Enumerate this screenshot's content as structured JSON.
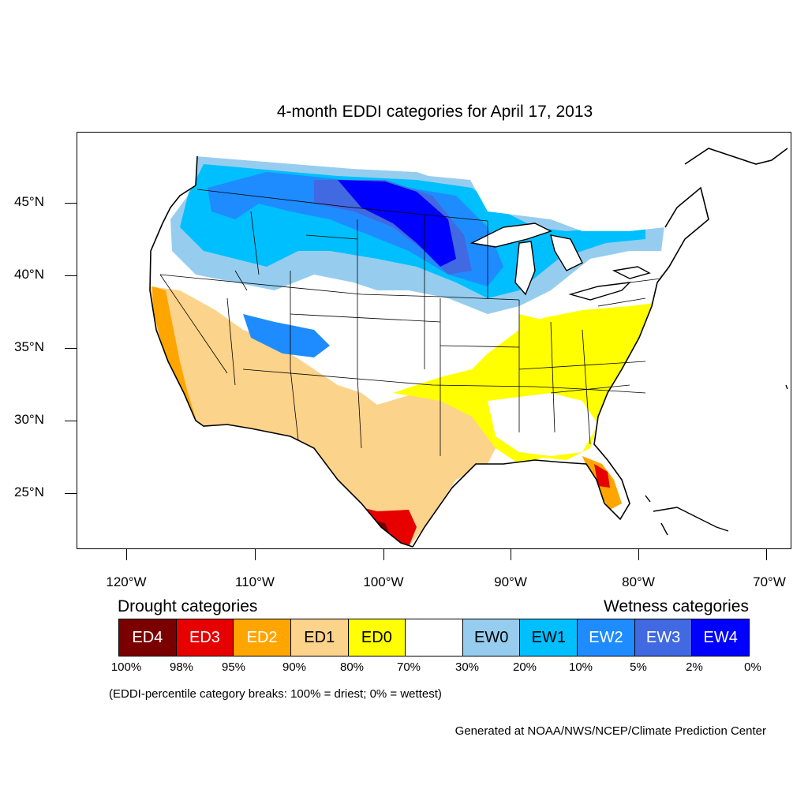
{
  "title": "4-month EDDI categories for April 17, 2013",
  "lat_labels": [
    "45°N",
    "40°N",
    "35°N",
    "30°N",
    "25°N"
  ],
  "lon_labels": [
    "120°W",
    "110°W",
    "100°W",
    "90°W",
    "80°W",
    "70°W"
  ],
  "legend": {
    "drought_title": "Drought categories",
    "wetness_title": "Wetness categories",
    "categories": [
      {
        "label": "ED4",
        "color": "#7a0000",
        "text_color": "#ffffff"
      },
      {
        "label": "ED3",
        "color": "#e60000",
        "text_color": "#ffffff"
      },
      {
        "label": "ED2",
        "color": "#ffa500",
        "text_color": "#ffffff"
      },
      {
        "label": "ED1",
        "color": "#fcd38a",
        "text_color": "#000000"
      },
      {
        "label": "ED0",
        "color": "#ffff00",
        "text_color": "#000000"
      },
      {
        "label": "",
        "color": "#ffffff",
        "text_color": "#000000"
      },
      {
        "label": "EW0",
        "color": "#96cdef",
        "text_color": "#000000"
      },
      {
        "label": "EW1",
        "color": "#00bfff",
        "text_color": "#000000"
      },
      {
        "label": "EW2",
        "color": "#1e8cff",
        "text_color": "#ffffff"
      },
      {
        "label": "EW3",
        "color": "#4169e1",
        "text_color": "#ffffff"
      },
      {
        "label": "EW4",
        "color": "#0000ff",
        "text_color": "#ffffff"
      }
    ],
    "breaks": [
      "100%",
      "98%",
      "95%",
      "90%",
      "80%",
      "70%",
      "30%",
      "20%",
      "10%",
      "5%",
      "2%",
      "0%"
    ]
  },
  "note": "(EDDI-percentile category breaks: 100% = driest; 0% = wettest)",
  "credit": "Generated at NOAA/NWS/NCEP/Climate Prediction Center"
}
